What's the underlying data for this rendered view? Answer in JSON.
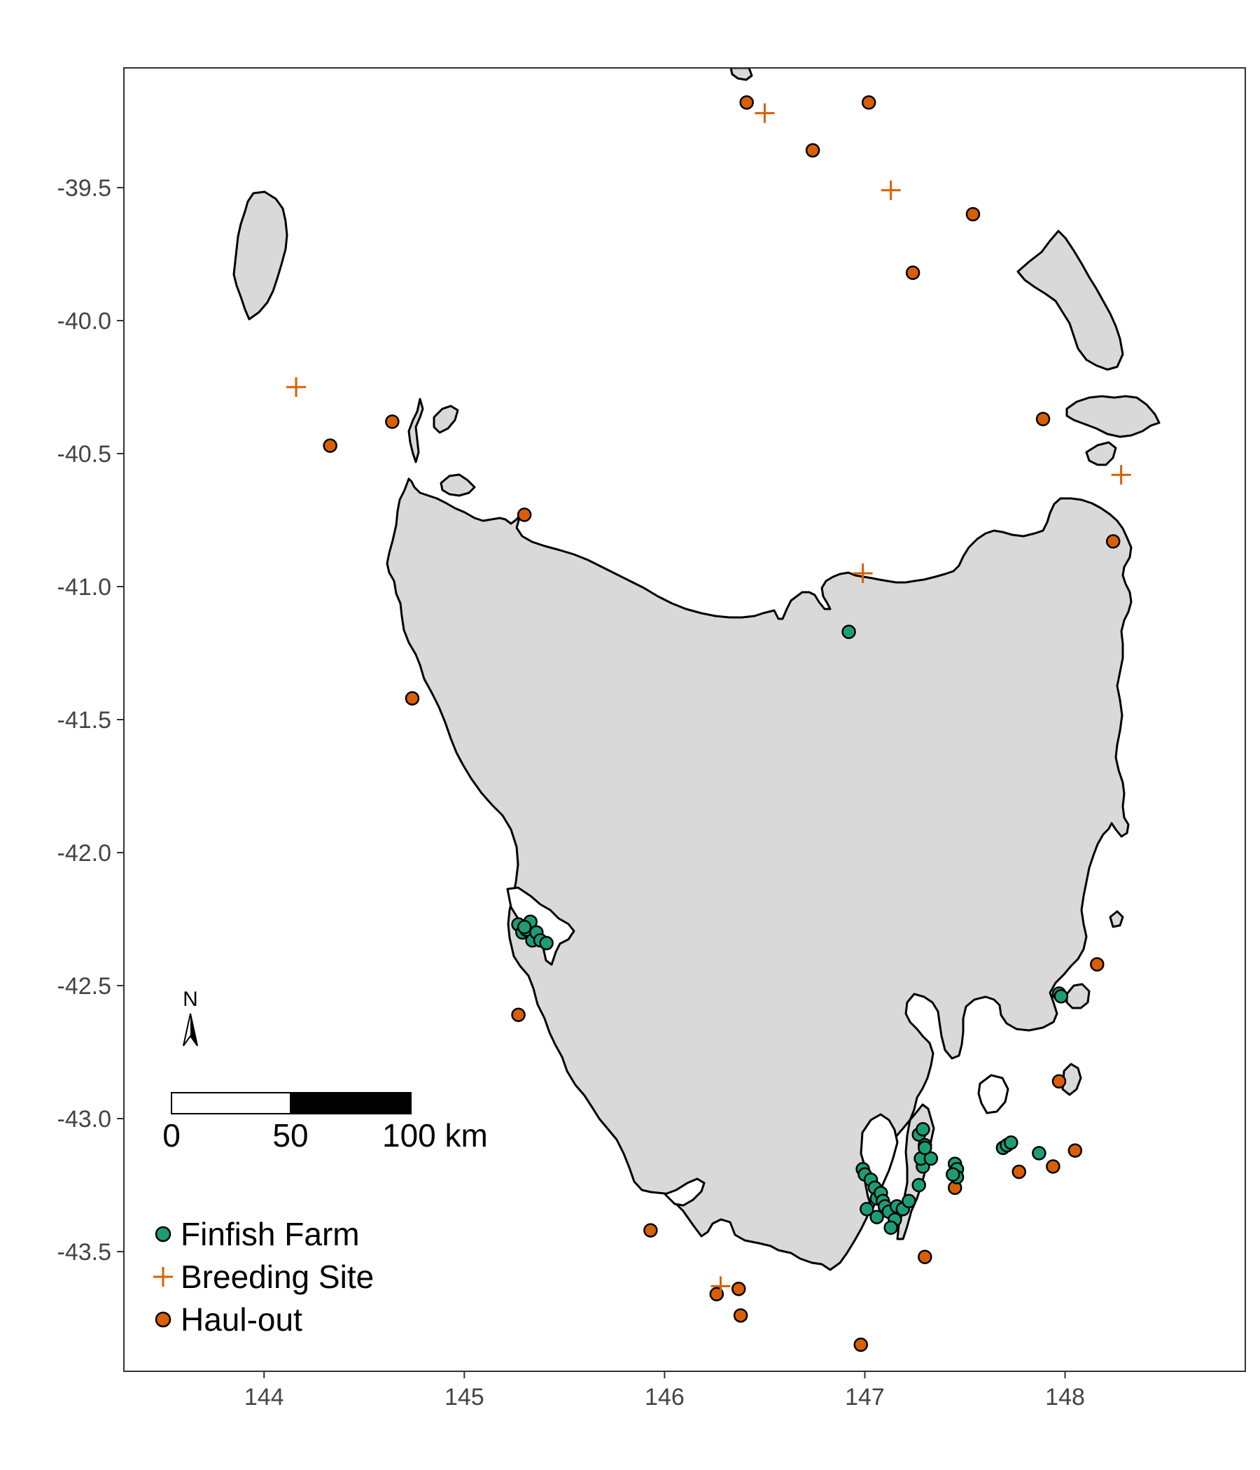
{
  "map": {
    "colors": {
      "finfish_farm": "#1b9e77",
      "breeding_site": "#d95f02",
      "haul_out": "#d95f02",
      "land": "#d9d9d9",
      "outline": "#000000"
    },
    "x_ticks": [
      "144",
      "145",
      "146",
      "147",
      "148"
    ],
    "y_ticks": [
      "-39.5",
      "-40.0",
      "-40.5",
      "-41.0",
      "-41.5",
      "-42.0",
      "-42.5",
      "-43.0",
      "-43.5"
    ],
    "north_arrow": {
      "label": "N",
      "icon": "north-arrow-icon"
    },
    "scale_bar": {
      "labels": [
        "0",
        "50",
        "100 km"
      ]
    },
    "legend": {
      "placement": "bottom-left",
      "items": [
        {
          "label": "Finfish Farm",
          "symbol": "circle"
        },
        {
          "label": "Breeding Site",
          "symbol": "plus"
        },
        {
          "label": "Haul-out",
          "symbol": "circle"
        }
      ]
    }
  },
  "chart_data": {
    "type": "scatter",
    "title": "",
    "xlabel": "",
    "ylabel": "",
    "xlim": [
      143.3,
      148.9
    ],
    "ylim": [
      -43.95,
      -39.05
    ],
    "grid": false,
    "legend_placement": "bottom-left",
    "series": [
      {
        "name": "Finfish Farm",
        "marker": "circle",
        "color": "#1b9e77",
        "x": [
          146.92,
          145.27,
          145.29,
          145.31,
          145.33,
          145.34,
          145.36,
          145.38,
          145.41,
          145.3,
          146.99,
          147.0,
          147.03,
          147.05,
          147.06,
          147.08,
          147.09,
          147.1,
          147.12,
          147.15,
          147.16,
          147.19,
          147.22,
          147.01,
          147.13,
          147.06,
          147.27,
          147.29,
          147.3,
          147.29,
          147.28,
          147.27,
          147.33,
          147.3,
          147.45,
          147.46,
          147.46,
          147.44,
          147.69,
          147.71,
          147.73,
          147.87,
          147.97,
          147.98
        ],
        "y": [
          -41.17,
          -42.27,
          -42.3,
          -42.29,
          -42.26,
          -42.33,
          -42.3,
          -42.33,
          -42.34,
          -42.28,
          -43.19,
          -43.21,
          -43.23,
          -43.26,
          -43.3,
          -43.28,
          -43.31,
          -43.33,
          -43.35,
          -43.38,
          -43.33,
          -43.34,
          -43.31,
          -43.34,
          -43.41,
          -43.37,
          -43.06,
          -43.04,
          -43.1,
          -43.18,
          -43.15,
          -43.25,
          -43.15,
          -43.11,
          -43.17,
          -43.19,
          -43.22,
          -43.21,
          -43.11,
          -43.1,
          -43.09,
          -43.13,
          -42.53,
          -42.54
        ]
      },
      {
        "name": "Breeding Site",
        "marker": "plus",
        "color": "#d95f02",
        "x": [
          146.5,
          147.13,
          144.16,
          148.28,
          146.99,
          146.28
        ],
        "y": [
          -39.22,
          -39.51,
          -40.25,
          -40.58,
          -40.95,
          -43.63
        ]
      },
      {
        "name": "Haul-out",
        "marker": "circle",
        "color": "#d95f02",
        "x": [
          146.41,
          147.02,
          146.74,
          147.54,
          147.24,
          144.33,
          144.64,
          147.89,
          145.3,
          148.24,
          144.74,
          145.27,
          148.16,
          147.97,
          148.05,
          147.94,
          147.77,
          147.45,
          147.3,
          145.93,
          146.26,
          146.37,
          146.38,
          146.98
        ],
        "y": [
          -39.18,
          -39.18,
          -39.36,
          -39.6,
          -39.82,
          -40.47,
          -40.38,
          -40.37,
          -40.73,
          -40.83,
          -41.42,
          -42.61,
          -42.42,
          -42.86,
          -43.12,
          -43.18,
          -43.2,
          -43.26,
          -43.52,
          -43.42,
          -43.66,
          -43.64,
          -43.74,
          -43.85
        ]
      }
    ]
  }
}
